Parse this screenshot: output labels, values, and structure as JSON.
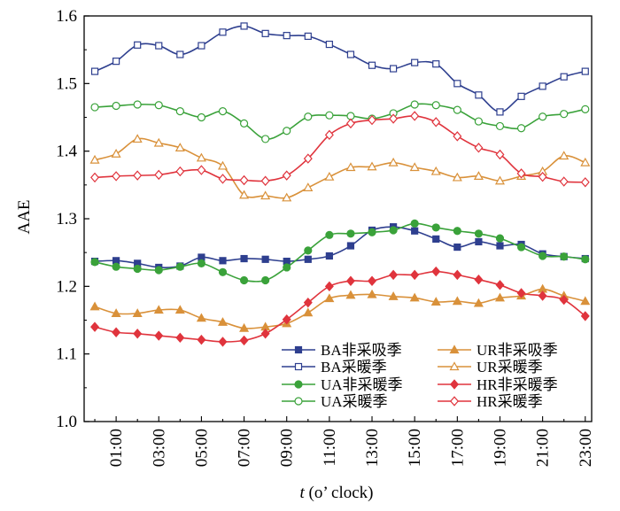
{
  "chart_data": {
    "type": "line",
    "ylabel": "AAE",
    "xlabel_var": "t",
    "xlabel_rest": " (o’ clock)",
    "ylim": [
      1.0,
      1.6
    ],
    "yticks": [
      "1.0",
      "1.1",
      "1.2",
      "1.3",
      "1.4",
      "1.5",
      "1.6"
    ],
    "x": [
      0,
      1,
      2,
      3,
      4,
      5,
      6,
      7,
      8,
      9,
      10,
      11,
      12,
      13,
      14,
      15,
      16,
      17,
      18,
      19,
      20,
      21,
      22,
      23
    ],
    "xticks": [
      "01:00",
      "03:00",
      "05:00",
      "07:00",
      "09:00",
      "11:00",
      "13:00",
      "15:00",
      "17:00",
      "19:00",
      "21:00",
      "23:00"
    ],
    "xtick_values": [
      1,
      3,
      5,
      7,
      9,
      11,
      13,
      15,
      17,
      19,
      21,
      23
    ],
    "legend_position": "bottom-right",
    "series": [
      {
        "name": "BA非采吸季",
        "color": "#2e3f8f",
        "marker": "square-filled",
        "values": [
          1.237,
          1.238,
          1.234,
          1.228,
          1.23,
          1.243,
          1.238,
          1.241,
          1.24,
          1.237,
          1.24,
          1.245,
          1.26,
          1.283,
          1.288,
          1.282,
          1.27,
          1.258,
          1.266,
          1.26,
          1.262,
          1.248,
          1.244,
          1.241
        ]
      },
      {
        "name": "UR非采吸季",
        "color": "#d9913a",
        "marker": "triangle-filled",
        "values": [
          1.17,
          1.16,
          1.16,
          1.165,
          1.165,
          1.153,
          1.147,
          1.138,
          1.14,
          1.145,
          1.161,
          1.182,
          1.187,
          1.188,
          1.185,
          1.183,
          1.177,
          1.178,
          1.175,
          1.183,
          1.186,
          1.196,
          1.186,
          1.178
        ]
      },
      {
        "name": "BA采暖季",
        "color": "#2e3f8f",
        "marker": "square-open",
        "values": [
          1.518,
          1.533,
          1.557,
          1.556,
          1.543,
          1.556,
          1.576,
          1.585,
          1.574,
          1.571,
          1.57,
          1.558,
          1.543,
          1.527,
          1.522,
          1.531,
          1.529,
          1.5,
          1.483,
          1.458,
          1.481,
          1.496,
          1.51,
          1.518
        ]
      },
      {
        "name": "UR采暖季",
        "color": "#d9913a",
        "marker": "triangle-open",
        "values": [
          1.387,
          1.396,
          1.418,
          1.412,
          1.405,
          1.39,
          1.378,
          1.335,
          1.334,
          1.331,
          1.346,
          1.362,
          1.376,
          1.377,
          1.383,
          1.376,
          1.37,
          1.361,
          1.363,
          1.356,
          1.363,
          1.37,
          1.393,
          1.383
        ]
      },
      {
        "name": "UA非采暖季",
        "color": "#3aa23a",
        "marker": "circle-filled",
        "values": [
          1.236,
          1.229,
          1.226,
          1.224,
          1.229,
          1.234,
          1.221,
          1.209,
          1.209,
          1.228,
          1.253,
          1.276,
          1.278,
          1.28,
          1.283,
          1.293,
          1.287,
          1.282,
          1.278,
          1.271,
          1.258,
          1.245,
          1.244,
          1.24
        ]
      },
      {
        "name": "HR非采暖季",
        "color": "#e0343d",
        "marker": "diamond-filled",
        "values": [
          1.14,
          1.132,
          1.13,
          1.127,
          1.124,
          1.121,
          1.118,
          1.12,
          1.13,
          1.151,
          1.176,
          1.2,
          1.208,
          1.208,
          1.217,
          1.217,
          1.222,
          1.217,
          1.21,
          1.202,
          1.19,
          1.186,
          1.18,
          1.156
        ]
      },
      {
        "name": "UA采暖季",
        "color": "#3aa23a",
        "marker": "circle-open",
        "values": [
          1.465,
          1.467,
          1.469,
          1.468,
          1.459,
          1.45,
          1.459,
          1.441,
          1.418,
          1.43,
          1.451,
          1.453,
          1.452,
          1.448,
          1.456,
          1.469,
          1.468,
          1.461,
          1.444,
          1.437,
          1.434,
          1.451,
          1.455,
          1.462
        ]
      },
      {
        "name": "HR采暖季",
        "color": "#e0343d",
        "marker": "diamond-open",
        "values": [
          1.361,
          1.363,
          1.364,
          1.365,
          1.37,
          1.372,
          1.359,
          1.357,
          1.356,
          1.364,
          1.389,
          1.424,
          1.441,
          1.446,
          1.448,
          1.452,
          1.443,
          1.422,
          1.405,
          1.395,
          1.367,
          1.362,
          1.355,
          1.354
        ]
      }
    ]
  }
}
